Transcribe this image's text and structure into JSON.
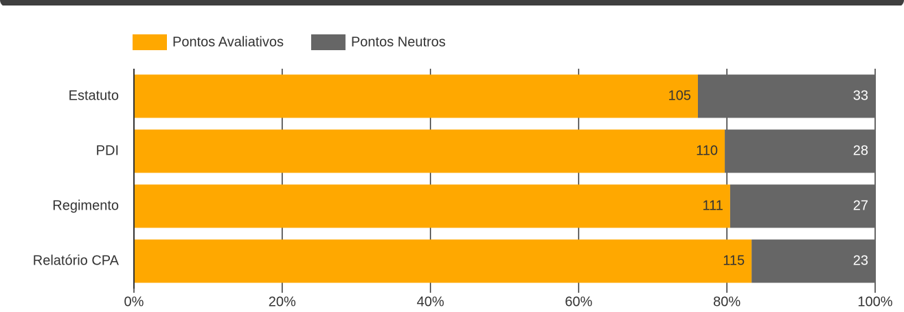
{
  "chart_data": {
    "type": "bar",
    "orientation": "horizontal",
    "stacked": "percent",
    "categories": [
      "Estatuto",
      "PDI",
      "Regimento",
      "Relatório CPA"
    ],
    "series": [
      {
        "name": "Pontos Avaliativos",
        "color": "#ffa800",
        "values": [
          105,
          110,
          111,
          115
        ]
      },
      {
        "name": "Pontos Neutros",
        "color": "#666666",
        "values": [
          33,
          28,
          27,
          23
        ]
      }
    ],
    "xlim": [
      0,
      100
    ],
    "xticks": [
      {
        "value": 0,
        "label": "0%"
      },
      {
        "value": 20,
        "label": "20%"
      },
      {
        "value": 40,
        "label": "40%"
      },
      {
        "value": 60,
        "label": "60%"
      },
      {
        "value": 80,
        "label": "80%"
      },
      {
        "value": 100,
        "label": "100%"
      }
    ],
    "grid": true,
    "legend": "top"
  }
}
